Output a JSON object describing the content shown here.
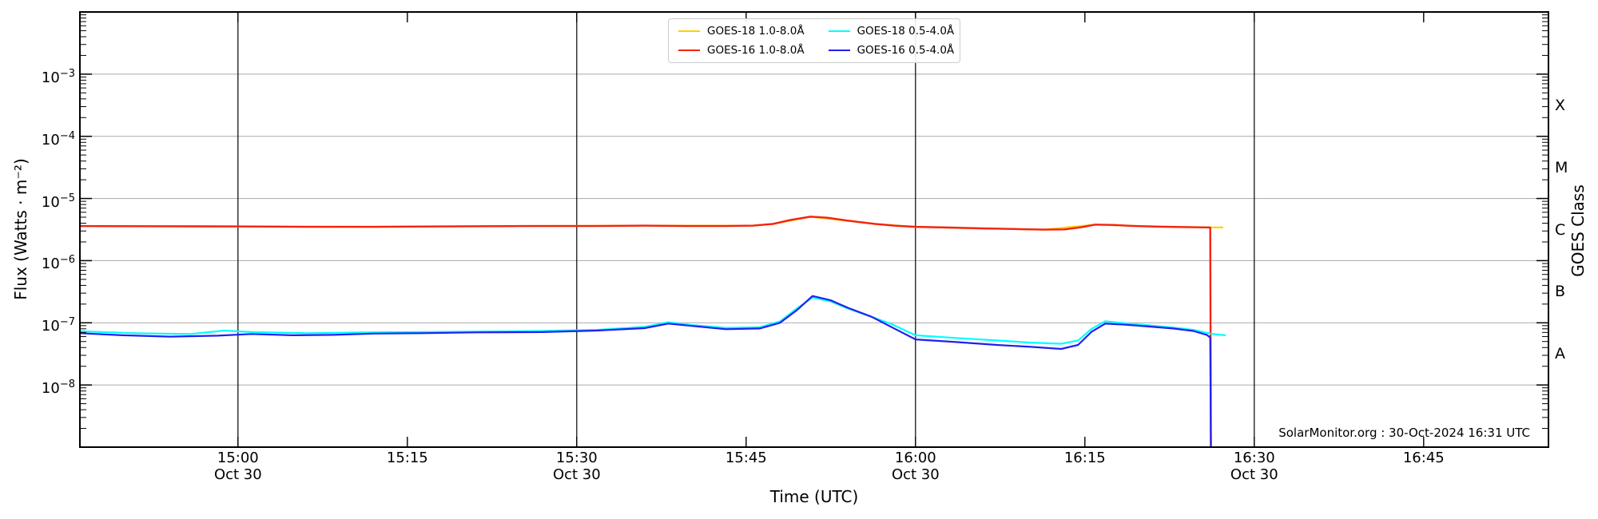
{
  "figure": {
    "title": "",
    "background": "#ffffff"
  },
  "chart_data": {
    "type": "line",
    "title": "",
    "xlabel": "Time (UTC)",
    "ylabel": "Flux (Watts · m⁻²)",
    "ylabel_right": "GOES Class",
    "annotation": "SolarMonitor.org : 30-Oct-2024 16:31 UTC",
    "x_axis": {
      "units": "decimal hours UTC, 30-Oct-2024",
      "domain_hours": [
        14.7667,
        16.9342
      ],
      "date_sublabel": "Oct 30",
      "ticks": [
        {
          "label": "15:00",
          "hours": 15.0,
          "date": "Oct 30",
          "gridline": true
        },
        {
          "label": "15:15",
          "hours": 15.25
        },
        {
          "label": "15:30",
          "hours": 15.5,
          "date": "Oct 30",
          "gridline": true
        },
        {
          "label": "15:45",
          "hours": 15.75
        },
        {
          "label": "16:00",
          "hours": 16.0,
          "date": "Oct 30",
          "gridline": true
        },
        {
          "label": "16:15",
          "hours": 16.25
        },
        {
          "label": "16:30",
          "hours": 16.5,
          "date": "Oct 30",
          "gridline": true
        },
        {
          "label": "16:45",
          "hours": 16.75
        }
      ]
    },
    "y_axis": {
      "scale": "log",
      "range_watts_m2": [
        1e-09,
        0.01
      ],
      "labeled_exponents": [
        -3,
        -4,
        -5,
        -6,
        -7,
        -8
      ],
      "gridlines_at_decades": true,
      "goes_class_labels": [
        {
          "label": "X",
          "center_exponent": -3.5
        },
        {
          "label": "M",
          "center_exponent": -4.5
        },
        {
          "label": "C",
          "center_exponent": -5.5
        },
        {
          "label": "B",
          "center_exponent": -6.5
        },
        {
          "label": "A",
          "center_exponent": -7.5
        }
      ]
    },
    "legend": {
      "position": "top-center",
      "entries": [
        {
          "label": "GOES-18 1.0-8.0Å",
          "color": "#ffd000"
        },
        {
          "label": "GOES-18 0.5-4.0Å",
          "color": "#00ffff"
        },
        {
          "label": "GOES-16 1.0-8.0Å",
          "color": "#f3230f"
        },
        {
          "label": "GOES-16 0.5-4.0Å",
          "color": "#2020f0"
        }
      ]
    },
    "series": [
      {
        "name": "GOES-18 1.0-8.0Å",
        "color": "#ffd000",
        "width": 2.2,
        "points": [
          [
            14.767,
            3.6e-06
          ],
          [
            15.0,
            3.55e-06
          ],
          [
            15.2,
            3.5e-06
          ],
          [
            15.42,
            3.6e-06
          ],
          [
            15.6,
            3.66e-06
          ],
          [
            15.76,
            3.66e-06
          ],
          [
            15.79,
            3.9e-06
          ],
          [
            15.845,
            5.08e-06
          ],
          [
            15.94,
            3.9e-06
          ],
          [
            16.0,
            3.5e-06
          ],
          [
            16.1,
            3.3e-06
          ],
          [
            16.19,
            3.15e-06
          ],
          [
            16.265,
            3.8e-06
          ],
          [
            16.32,
            3.62e-06
          ],
          [
            16.4,
            3.47e-06
          ],
          [
            16.453,
            3.42e-06
          ]
        ]
      },
      {
        "name": "GOES-16 1.0-8.0Å",
        "color": "#f3230f",
        "width": 2.4,
        "points": [
          [
            14.767,
            3.6e-06
          ],
          [
            14.85,
            3.58e-06
          ],
          [
            15.0,
            3.55e-06
          ],
          [
            15.1,
            3.5e-06
          ],
          [
            15.2,
            3.5e-06
          ],
          [
            15.3,
            3.55e-06
          ],
          [
            15.42,
            3.6e-06
          ],
          [
            15.52,
            3.6e-06
          ],
          [
            15.6,
            3.66e-06
          ],
          [
            15.66,
            3.6e-06
          ],
          [
            15.72,
            3.6e-06
          ],
          [
            15.76,
            3.66e-06
          ],
          [
            15.79,
            3.9e-06
          ],
          [
            15.815,
            4.5e-06
          ],
          [
            15.845,
            5.1e-06
          ],
          [
            15.87,
            4.9e-06
          ],
          [
            15.9,
            4.4e-06
          ],
          [
            15.94,
            3.9e-06
          ],
          [
            15.97,
            3.65e-06
          ],
          [
            16.0,
            3.5e-06
          ],
          [
            16.05,
            3.4e-06
          ],
          [
            16.1,
            3.3e-06
          ],
          [
            16.15,
            3.22e-06
          ],
          [
            16.19,
            3.15e-06
          ],
          [
            16.22,
            3.18e-06
          ],
          [
            16.245,
            3.45e-06
          ],
          [
            16.265,
            3.8e-06
          ],
          [
            16.29,
            3.75e-06
          ],
          [
            16.32,
            3.62e-06
          ],
          [
            16.36,
            3.52e-06
          ],
          [
            16.4,
            3.47e-06
          ],
          [
            16.435,
            3.42e-06
          ],
          [
            16.436,
            1.05e-09
          ]
        ]
      },
      {
        "name": "GOES-18 0.5-4.0Å",
        "color": "#00ffff",
        "width": 2.2,
        "points": [
          [
            14.767,
            7.3e-08
          ],
          [
            14.85,
            6.8e-08
          ],
          [
            14.93,
            6.6e-08
          ],
          [
            14.98,
            7.5e-08
          ],
          [
            15.02,
            7.1e-08
          ],
          [
            15.1,
            6.8e-08
          ],
          [
            15.18,
            7e-08
          ],
          [
            15.27,
            7.1e-08
          ],
          [
            15.35,
            7.2e-08
          ],
          [
            15.45,
            7.4e-08
          ],
          [
            15.53,
            7.7e-08
          ],
          [
            15.6,
            8.6e-08
          ],
          [
            15.635,
            1.02e-07
          ],
          [
            15.67,
            9.2e-08
          ],
          [
            15.72,
            8.3e-08
          ],
          [
            15.77,
            8.5e-08
          ],
          [
            15.8,
            1.05e-07
          ],
          [
            15.825,
            1.7e-07
          ],
          [
            15.848,
            2.55e-07
          ],
          [
            15.875,
            2.2e-07
          ],
          [
            15.9,
            1.7e-07
          ],
          [
            15.935,
            1.25e-07
          ],
          [
            15.965,
            9.5e-08
          ],
          [
            16.0,
            6.3e-08
          ],
          [
            16.06,
            5.7e-08
          ],
          [
            16.12,
            5.2e-08
          ],
          [
            16.17,
            4.8e-08
          ],
          [
            16.215,
            4.6e-08
          ],
          [
            16.24,
            5.2e-08
          ],
          [
            16.26,
            8e-08
          ],
          [
            16.28,
            1.06e-07
          ],
          [
            16.31,
            9.8e-08
          ],
          [
            16.34,
            9.2e-08
          ],
          [
            16.38,
            8.4e-08
          ],
          [
            16.41,
            7.7e-08
          ],
          [
            16.435,
            6.7e-08
          ],
          [
            16.457,
            6.3e-08
          ]
        ]
      },
      {
        "name": "GOES-16 0.5-4.0Å",
        "color": "#2020f0",
        "width": 2.2,
        "points": [
          [
            14.767,
            6.8e-08
          ],
          [
            14.83,
            6.3e-08
          ],
          [
            14.9,
            6e-08
          ],
          [
            14.97,
            6.2e-08
          ],
          [
            15.02,
            6.6e-08
          ],
          [
            15.08,
            6.3e-08
          ],
          [
            15.14,
            6.4e-08
          ],
          [
            15.2,
            6.7e-08
          ],
          [
            15.27,
            6.8e-08
          ],
          [
            15.35,
            7e-08
          ],
          [
            15.45,
            7.1e-08
          ],
          [
            15.53,
            7.5e-08
          ],
          [
            15.6,
            8.2e-08
          ],
          [
            15.635,
            9.7e-08
          ],
          [
            15.67,
            8.9e-08
          ],
          [
            15.72,
            7.9e-08
          ],
          [
            15.77,
            8.1e-08
          ],
          [
            15.8,
            1e-07
          ],
          [
            15.825,
            1.6e-07
          ],
          [
            15.848,
            2.7e-07
          ],
          [
            15.875,
            2.3e-07
          ],
          [
            15.9,
            1.75e-07
          ],
          [
            15.935,
            1.25e-07
          ],
          [
            15.965,
            8.5e-08
          ],
          [
            16.0,
            5.4e-08
          ],
          [
            16.06,
            4.9e-08
          ],
          [
            16.12,
            4.4e-08
          ],
          [
            16.17,
            4.1e-08
          ],
          [
            16.215,
            3.8e-08
          ],
          [
            16.24,
            4.4e-08
          ],
          [
            16.26,
            7.2e-08
          ],
          [
            16.28,
            9.7e-08
          ],
          [
            16.31,
            9.3e-08
          ],
          [
            16.34,
            8.8e-08
          ],
          [
            16.38,
            8.1e-08
          ],
          [
            16.41,
            7.4e-08
          ],
          [
            16.43,
            6.4e-08
          ],
          [
            16.435,
            5.8e-08
          ],
          [
            16.436,
            1.05e-09
          ]
        ]
      }
    ]
  },
  "colors": {
    "decade_gridline": "#b3b3b3",
    "date_gridline": "#000000",
    "spine": "#000000",
    "tick": "#000000",
    "legend_border": "#cccccc"
  }
}
